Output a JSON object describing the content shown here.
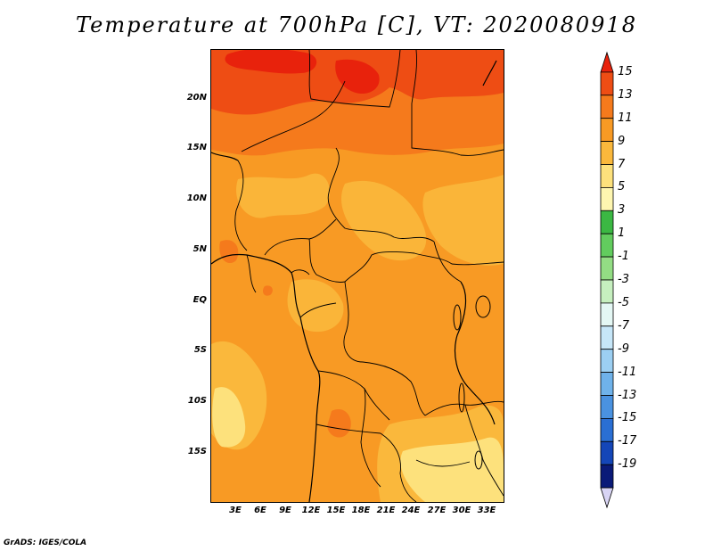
{
  "title": "Temperature at 700hPa [C], VT: 2020080918",
  "credit": "GrADS: IGES/COLA",
  "lat_labels": [
    "20N",
    "15N",
    "10N",
    "5N",
    "EQ",
    "5S",
    "10S",
    "15S"
  ],
  "lon_labels": [
    "3E",
    "6E",
    "9E",
    "12E",
    "15E",
    "18E",
    "21E",
    "24E",
    "27E",
    "30E",
    "33E"
  ],
  "colorbar": {
    "labels": [
      "15",
      "13",
      "11",
      "9",
      "7",
      "5",
      "3",
      "1",
      "-1",
      "-3",
      "-5",
      "-7",
      "-9",
      "-11",
      "-13",
      "-15",
      "-17",
      "-19"
    ],
    "colors": [
      "#e8220c",
      "#ee4d14",
      "#f57a1c",
      "#f89a24",
      "#fab83c",
      "#fde17c",
      "#fef6b0",
      "#3bb843",
      "#62cc5e",
      "#93dd84",
      "#c6efbf",
      "#e4f7f4",
      "#c6e6f8",
      "#9ccff2",
      "#6fb2ea",
      "#4a92e0",
      "#2a6fd4",
      "#1446b8",
      "#0a1a78",
      "#d8d4f4"
    ]
  },
  "colors": {
    "warm15": "#e8220c",
    "warm13": "#ee4d14",
    "warm11": "#f57a1c",
    "warm9": "#f89a24",
    "warm7": "#fab83c",
    "warm5": "#fde17c"
  }
}
